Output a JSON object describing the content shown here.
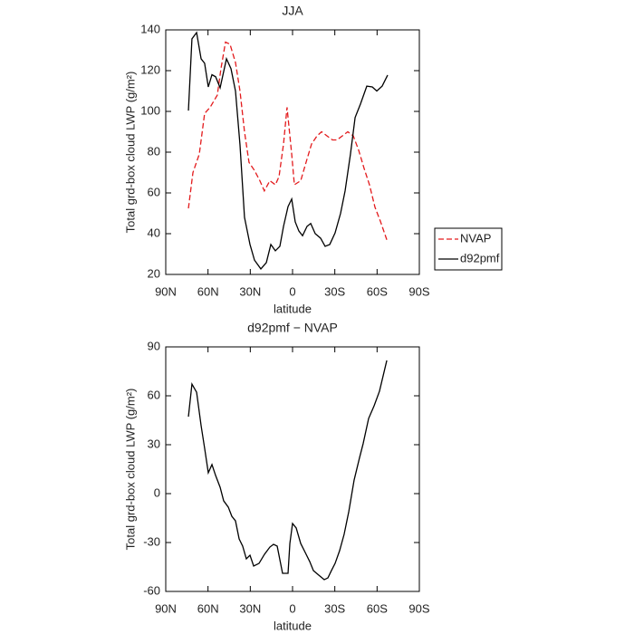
{
  "chart_data": [
    {
      "type": "line",
      "title": "JJA",
      "x_label": "latitude",
      "y_label": "Total grd-box cloud LWP (g/m²)",
      "xlim": [
        90,
        -90
      ],
      "xticks": [
        {
          "value": 90,
          "label": "90N"
        },
        {
          "value": 60,
          "label": "60N"
        },
        {
          "value": 30,
          "label": "30N"
        },
        0,
        {
          "value": -30,
          "label": "30S"
        },
        {
          "value": -60,
          "label": "60S"
        },
        {
          "value": -90,
          "label": "90S"
        }
      ],
      "ylim": [
        20,
        140
      ],
      "yticks": [
        20,
        40,
        60,
        80,
        100,
        120,
        140
      ],
      "legend": "right",
      "series": [
        {
          "name": "NVAP",
          "color": "#e31a1c",
          "dash": true,
          "x": [
            73.9,
            70.7,
            66.2,
            62.4,
            58.5,
            53.4,
            50.8,
            47.6,
            44.4,
            40.5,
            37.3,
            34.1,
            30.9,
            27.0,
            23.2,
            20.0,
            16.1,
            12.2,
            9.6,
            6.4,
            3.9,
            0.6,
            -1.3,
            -5.8,
            -9.6,
            -13.5,
            -17.4,
            -20.6,
            -24.4,
            -28.3,
            -31.5,
            -35.4,
            -39.2,
            -43.1,
            -46.9,
            -50.8,
            -54.6,
            -58.5,
            -62.4,
            -66.9
          ],
          "values": [
            52.4,
            70,
            79,
            99,
            102,
            108,
            121,
            134,
            133,
            124,
            110,
            90,
            75,
            71,
            66,
            61,
            66,
            64,
            68,
            84,
            102,
            79,
            64,
            66,
            75,
            84,
            88,
            90,
            88,
            86,
            86,
            88,
            90,
            88,
            81,
            72,
            64,
            53,
            46,
            37
          ]
        },
        {
          "name": "d92pmf",
          "color": "#000000",
          "dash": false,
          "x": [
            73.9,
            71.4,
            68.1,
            64.9,
            62.4,
            59.8,
            57.2,
            54.6,
            51.4,
            46.9,
            43.7,
            40.5,
            37.3,
            34.1,
            30.2,
            27.0,
            22.5,
            18.6,
            15.4,
            12.2,
            9.0,
            6.4,
            3.2,
            0.6,
            -1.9,
            -4.5,
            -7.1,
            -10.3,
            -12.9,
            -16.1,
            -19.9,
            -23.1,
            -26.4,
            -30.2,
            -34.1,
            -37.3,
            -41.1,
            -44.4,
            -48.2,
            -52.7,
            -56.6,
            -59.8,
            -63.6,
            -67.5
          ],
          "values": [
            100.4,
            135.6,
            138.7,
            125.8,
            123.6,
            112,
            118,
            117,
            111.6,
            125.8,
            121,
            110,
            83.6,
            48,
            34.7,
            27,
            22.7,
            25.8,
            34.7,
            31.6,
            33.8,
            43.6,
            53.3,
            57,
            45.8,
            41.3,
            39,
            43.6,
            45,
            40,
            37.8,
            33.8,
            34.7,
            40.4,
            50,
            61,
            79,
            97,
            103.6,
            112.4,
            112,
            110,
            112.4,
            117.8
          ]
        }
      ]
    },
    {
      "type": "line",
      "title": "d92pmf − NVAP",
      "x_label": "latitude",
      "y_label": "Total grd-box cloud LWP (g/m²)",
      "xlim": [
        90,
        -90
      ],
      "xticks": [
        {
          "value": 90,
          "label": "90N"
        },
        {
          "value": 60,
          "label": "60N"
        },
        {
          "value": 30,
          "label": "30N"
        },
        0,
        {
          "value": -30,
          "label": "30S"
        },
        {
          "value": -60,
          "label": "60S"
        },
        {
          "value": -90,
          "label": "90S"
        }
      ],
      "ylim": [
        -60,
        90
      ],
      "yticks": [
        -60,
        -30,
        0,
        30,
        60,
        90
      ],
      "series": [
        {
          "color": "#000000",
          "dash": false,
          "x": [
            73.9,
            71.4,
            68.1,
            64.9,
            62.4,
            59.8,
            57.2,
            54.6,
            51.4,
            48.9,
            45.6,
            43.1,
            40.5,
            37.9,
            35.4,
            32.8,
            30.2,
            27.6,
            23.8,
            19.9,
            16.1,
            13.5,
            10.9,
            7.1,
            3.2,
            1.9,
            0,
            -2.6,
            -5.8,
            -9,
            -12.2,
            -14.8,
            -18.6,
            -22.5,
            -25.1,
            -27.6,
            -30.2,
            -33.4,
            -36.6,
            -39.9,
            -43.7,
            -47.6,
            -50.1,
            -54,
            -57.9,
            -61.7,
            -66.9
          ],
          "values": [
            47.2,
            67.2,
            62.2,
            41.7,
            27.8,
            12.8,
            17.8,
            11.1,
            3.9,
            -4.4,
            -8.3,
            -13.9,
            -16.7,
            -27.8,
            -32.2,
            -40,
            -37.8,
            -44.4,
            -42.8,
            -37.2,
            -32.8,
            -31.1,
            -32.2,
            -48.9,
            -48.9,
            -30.6,
            -18.3,
            -21.1,
            -30.6,
            -36.1,
            -41.7,
            -47.2,
            -50,
            -52.8,
            -51.7,
            -47.2,
            -42.8,
            -35,
            -25,
            -11.1,
            8.3,
            22.2,
            30.6,
            46.1,
            53.9,
            62.8,
            81.7
          ]
        }
      ]
    }
  ]
}
